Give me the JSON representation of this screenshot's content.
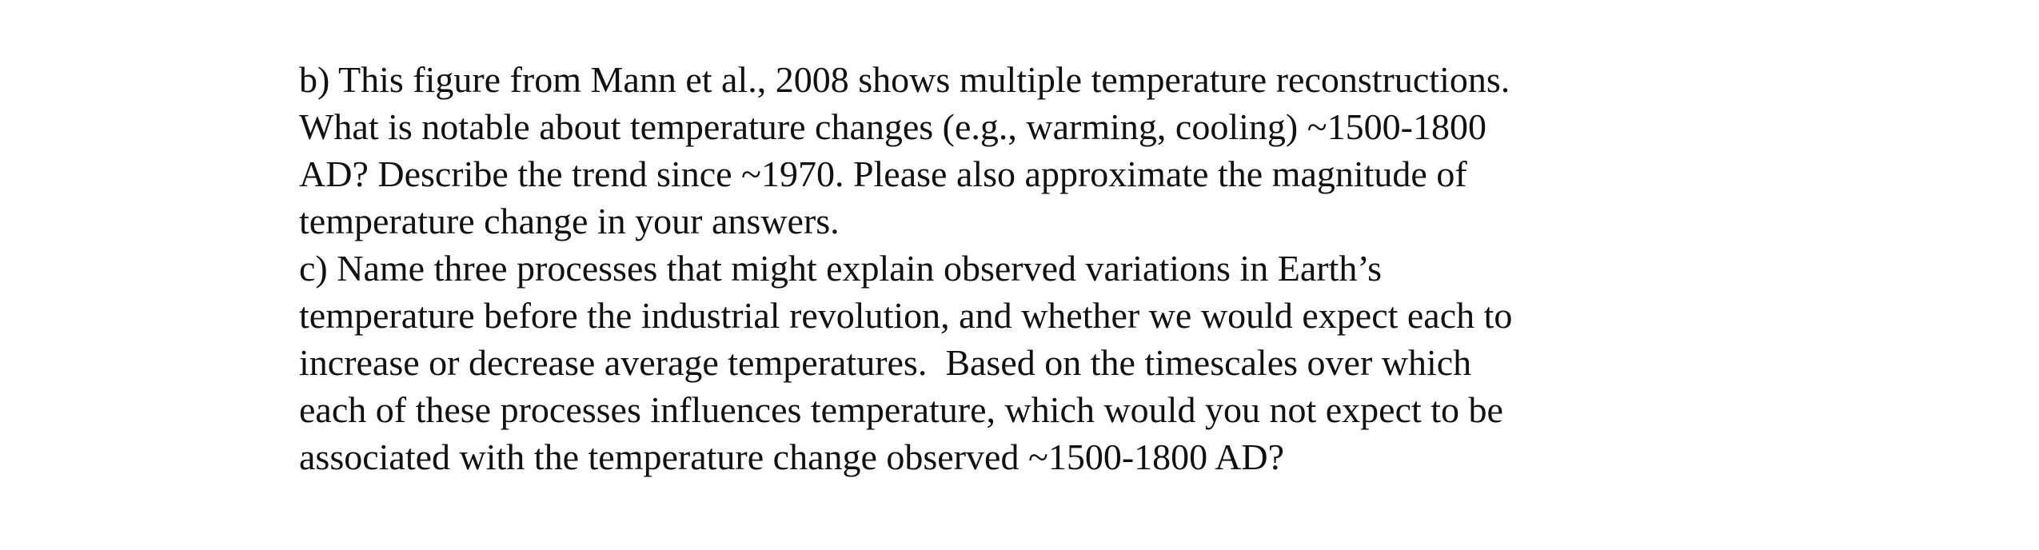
{
  "items": [
    {
      "lines": [
        "b) This figure from Mann et al., 2008 shows multiple temperature reconstructions.",
        "What is notable about temperature changes (e.g., warming, cooling) ~1500-1800",
        "AD? Describe the trend since ~1970. Please also approximate the magnitude of",
        "temperature change in your answers."
      ]
    },
    {
      "lines": [
        "c) Name three processes that might explain observed variations in Earth’s",
        "temperature before the industrial revolution, and whether we would expect each to",
        "increase or decrease average temperatures.  Based on the timescales over which",
        "each of these processes influences temperature, which would you not expect to be",
        "associated with the temperature change observed ~1500-1800 AD?"
      ]
    }
  ]
}
